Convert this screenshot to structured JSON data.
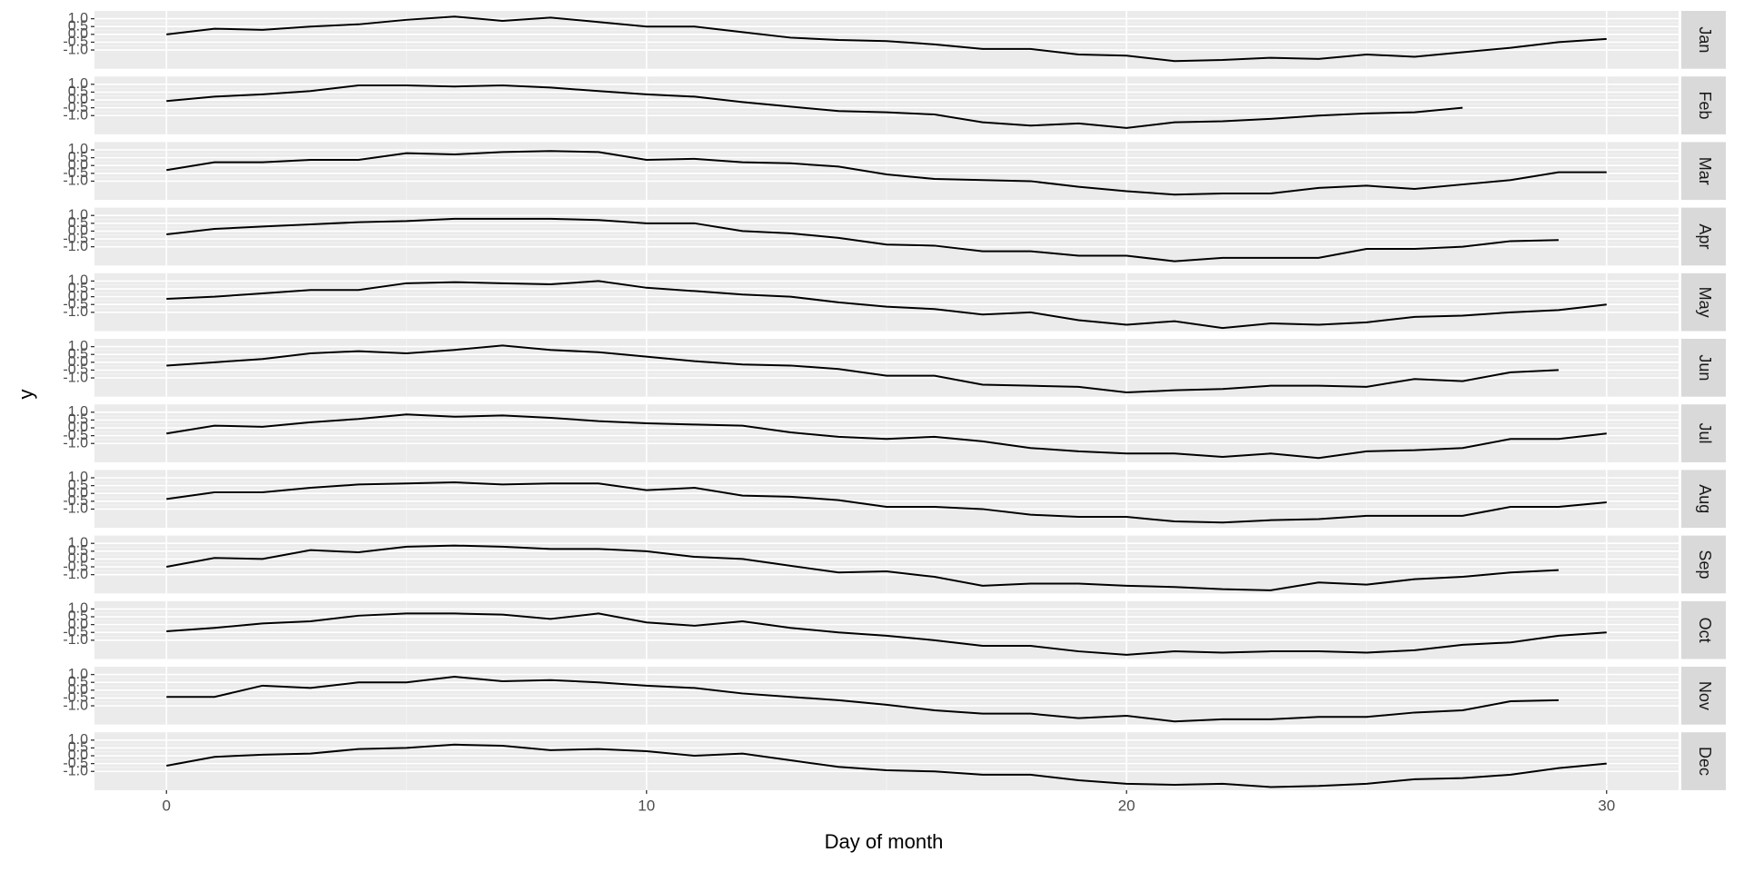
{
  "chart_data": {
    "type": "line",
    "x_label": "Day of month",
    "y_label": "y",
    "color": "#000000",
    "grid": true,
    "xlim": [
      -1.5,
      31.5
    ],
    "xticks": [
      0,
      10,
      20,
      30
    ],
    "ylim": [
      -2.2,
      1.5
    ],
    "yticks": [
      {
        "value": -1,
        "label": "-1.0"
      },
      {
        "value": -0.5,
        "label": "-0.5"
      },
      {
        "value": 0,
        "label": "0.0"
      },
      {
        "value": 0.5,
        "label": "0.5"
      },
      {
        "value": 1,
        "label": "1.0"
      }
    ],
    "facets": [
      {
        "name": "Jan",
        "x": [
          0,
          1,
          2,
          3,
          4,
          5,
          6,
          7,
          8,
          9,
          10,
          11,
          12,
          13,
          14,
          15,
          16,
          17,
          18,
          19,
          20,
          21,
          22,
          23,
          24,
          25,
          26,
          27,
          28,
          29,
          30
        ],
        "values": [
          0,
          0.36,
          0.29,
          0.5,
          0.64,
          0.93,
          1.14,
          0.86,
          1.07,
          0.79,
          0.5,
          0.5,
          0.14,
          -0.21,
          -0.36,
          -0.43,
          -0.64,
          -0.93,
          -0.93,
          -1.29,
          -1.36,
          -1.71,
          -1.64,
          -1.5,
          -1.57,
          -1.29,
          -1.43,
          -1.14,
          -0.86,
          -0.5,
          -0.29
        ]
      },
      {
        "name": "Feb",
        "x": [
          0,
          1,
          2,
          3,
          4,
          5,
          6,
          7,
          8,
          9,
          10,
          11,
          12,
          13,
          14,
          15,
          16,
          17,
          18,
          19,
          20,
          21,
          22,
          23,
          24,
          25,
          26,
          27
        ],
        "values": [
          -0.07,
          0.21,
          0.36,
          0.57,
          0.93,
          0.93,
          0.86,
          0.93,
          0.79,
          0.57,
          0.36,
          0.21,
          -0.14,
          -0.43,
          -0.71,
          -0.79,
          -0.93,
          -1.43,
          -1.64,
          -1.5,
          -1.79,
          -1.43,
          -1.36,
          -1.21,
          -1,
          -0.86,
          -0.79,
          -0.5
        ]
      },
      {
        "name": "Mar",
        "x": [
          0,
          1,
          2,
          3,
          4,
          5,
          6,
          7,
          8,
          9,
          10,
          11,
          12,
          13,
          14,
          15,
          16,
          17,
          18,
          19,
          20,
          21,
          22,
          23,
          24,
          25,
          26,
          27,
          28,
          29,
          30
        ],
        "values": [
          -0.29,
          0.21,
          0.21,
          0.36,
          0.36,
          0.79,
          0.71,
          0.86,
          0.93,
          0.86,
          0.36,
          0.43,
          0.21,
          0.14,
          -0.07,
          -0.57,
          -0.86,
          -0.93,
          -1,
          -1.36,
          -1.64,
          -1.86,
          -1.79,
          -1.79,
          -1.43,
          -1.29,
          -1.5,
          -1.21,
          -0.93,
          -0.43,
          -0.43
        ]
      },
      {
        "name": "Apr",
        "x": [
          0,
          1,
          2,
          3,
          4,
          5,
          6,
          7,
          8,
          9,
          10,
          11,
          12,
          13,
          14,
          15,
          16,
          17,
          18,
          19,
          20,
          21,
          22,
          23,
          24,
          25,
          26,
          27,
          28,
          29
        ],
        "values": [
          -0.21,
          0.14,
          0.29,
          0.43,
          0.57,
          0.64,
          0.79,
          0.79,
          0.79,
          0.71,
          0.5,
          0.5,
          0,
          -0.14,
          -0.43,
          -0.86,
          -0.93,
          -1.29,
          -1.29,
          -1.57,
          -1.57,
          -1.93,
          -1.71,
          -1.71,
          -1.71,
          -1.14,
          -1.14,
          -1,
          -0.64,
          -0.57
        ]
      },
      {
        "name": "May",
        "x": [
          0,
          1,
          2,
          3,
          4,
          5,
          6,
          7,
          8,
          9,
          10,
          11,
          12,
          13,
          14,
          15,
          16,
          17,
          18,
          19,
          20,
          21,
          22,
          23,
          24,
          25,
          26,
          27,
          28,
          29,
          30
        ],
        "values": [
          -0.14,
          0,
          0.21,
          0.43,
          0.43,
          0.86,
          0.93,
          0.86,
          0.79,
          1,
          0.57,
          0.36,
          0.14,
          0,
          -0.36,
          -0.64,
          -0.79,
          -1.14,
          -1,
          -1.5,
          -1.79,
          -1.57,
          -2,
          -1.71,
          -1.79,
          -1.64,
          -1.29,
          -1.21,
          -1,
          -0.86,
          -0.5
        ]
      },
      {
        "name": "Jun",
        "x": [
          0,
          1,
          2,
          3,
          4,
          5,
          6,
          7,
          8,
          9,
          10,
          11,
          12,
          13,
          14,
          15,
          16,
          17,
          18,
          19,
          20,
          21,
          22,
          23,
          24,
          25,
          26,
          27,
          28,
          29
        ],
        "values": [
          -0.21,
          0,
          0.21,
          0.57,
          0.71,
          0.57,
          0.79,
          1.07,
          0.79,
          0.64,
          0.36,
          0.07,
          -0.14,
          -0.21,
          -0.43,
          -0.86,
          -0.86,
          -1.43,
          -1.5,
          -1.57,
          -1.93,
          -1.79,
          -1.71,
          -1.5,
          -1.5,
          -1.57,
          -1.07,
          -1.21,
          -0.64,
          -0.5
        ]
      },
      {
        "name": "Jul",
        "x": [
          0,
          1,
          2,
          3,
          4,
          5,
          6,
          7,
          8,
          9,
          10,
          11,
          12,
          13,
          14,
          15,
          16,
          17,
          18,
          19,
          20,
          21,
          22,
          23,
          24,
          25,
          26,
          27,
          28,
          29,
          30
        ],
        "values": [
          -0.36,
          0.14,
          0.07,
          0.36,
          0.57,
          0.86,
          0.71,
          0.79,
          0.64,
          0.43,
          0.29,
          0.21,
          0.14,
          -0.29,
          -0.57,
          -0.71,
          -0.57,
          -0.86,
          -1.29,
          -1.5,
          -1.64,
          -1.64,
          -1.86,
          -1.64,
          -1.93,
          -1.5,
          -1.43,
          -1.29,
          -0.71,
          -0.71,
          -0.36
        ]
      },
      {
        "name": "Aug",
        "x": [
          0,
          1,
          2,
          3,
          4,
          5,
          6,
          7,
          8,
          9,
          10,
          11,
          12,
          13,
          14,
          15,
          16,
          17,
          18,
          19,
          20,
          21,
          22,
          23,
          24,
          25,
          26,
          27,
          28,
          29,
          30
        ],
        "values": [
          -0.36,
          0.07,
          0.07,
          0.36,
          0.57,
          0.64,
          0.71,
          0.57,
          0.64,
          0.64,
          0.21,
          0.36,
          -0.14,
          -0.21,
          -0.43,
          -0.86,
          -0.86,
          -1,
          -1.36,
          -1.5,
          -1.5,
          -1.79,
          -1.86,
          -1.71,
          -1.64,
          -1.43,
          -1.43,
          -1.43,
          -0.86,
          -0.86,
          -0.57
        ]
      },
      {
        "name": "Sep",
        "x": [
          0,
          1,
          2,
          3,
          4,
          5,
          6,
          7,
          8,
          9,
          10,
          11,
          12,
          13,
          14,
          15,
          16,
          17,
          18,
          19,
          20,
          21,
          22,
          23,
          24,
          25,
          26,
          27,
          28,
          29
        ],
        "values": [
          -0.5,
          0.07,
          0,
          0.57,
          0.43,
          0.79,
          0.86,
          0.79,
          0.64,
          0.64,
          0.5,
          0.14,
          0,
          -0.43,
          -0.86,
          -0.79,
          -1.14,
          -1.71,
          -1.57,
          -1.57,
          -1.71,
          -1.79,
          -1.93,
          -2,
          -1.5,
          -1.64,
          -1.29,
          -1.14,
          -0.86,
          -0.71
        ]
      },
      {
        "name": "Oct",
        "x": [
          0,
          1,
          2,
          3,
          4,
          5,
          6,
          7,
          8,
          9,
          10,
          11,
          12,
          13,
          14,
          15,
          16,
          17,
          18,
          19,
          20,
          21,
          22,
          23,
          24,
          25,
          26,
          27,
          28,
          29,
          30
        ],
        "values": [
          -0.43,
          -0.21,
          0.07,
          0.21,
          0.57,
          0.71,
          0.71,
          0.64,
          0.36,
          0.71,
          0.14,
          -0.07,
          0.21,
          -0.21,
          -0.5,
          -0.71,
          -1,
          -1.36,
          -1.36,
          -1.71,
          -1.93,
          -1.71,
          -1.79,
          -1.71,
          -1.71,
          -1.79,
          -1.64,
          -1.29,
          -1.14,
          -0.71,
          -0.5
        ]
      },
      {
        "name": "Nov",
        "x": [
          0,
          1,
          2,
          3,
          4,
          5,
          6,
          7,
          8,
          9,
          10,
          11,
          12,
          13,
          14,
          15,
          16,
          17,
          18,
          19,
          20,
          21,
          22,
          23,
          24,
          25,
          26,
          27,
          28,
          29
        ],
        "values": [
          -0.43,
          -0.43,
          0.29,
          0.14,
          0.5,
          0.5,
          0.86,
          0.57,
          0.64,
          0.5,
          0.29,
          0.14,
          -0.21,
          -0.43,
          -0.64,
          -0.93,
          -1.29,
          -1.5,
          -1.5,
          -1.79,
          -1.64,
          -2,
          -1.86,
          -1.86,
          -1.71,
          -1.71,
          -1.43,
          -1.29,
          -0.71,
          -0.64
        ]
      },
      {
        "name": "Dec",
        "x": [
          0,
          1,
          2,
          3,
          4,
          5,
          6,
          7,
          8,
          9,
          10,
          11,
          12,
          13,
          14,
          15,
          16,
          17,
          18,
          19,
          20,
          21,
          22,
          23,
          24,
          25,
          26,
          27,
          28,
          29,
          30
        ],
        "values": [
          -0.64,
          -0.07,
          0.07,
          0.14,
          0.43,
          0.5,
          0.71,
          0.64,
          0.36,
          0.43,
          0.29,
          0,
          0.14,
          -0.29,
          -0.71,
          -0.93,
          -1,
          -1.21,
          -1.21,
          -1.57,
          -1.79,
          -1.86,
          -1.79,
          -2,
          -1.93,
          -1.79,
          -1.5,
          -1.43,
          -1.21,
          -0.79,
          -0.5
        ]
      }
    ]
  }
}
